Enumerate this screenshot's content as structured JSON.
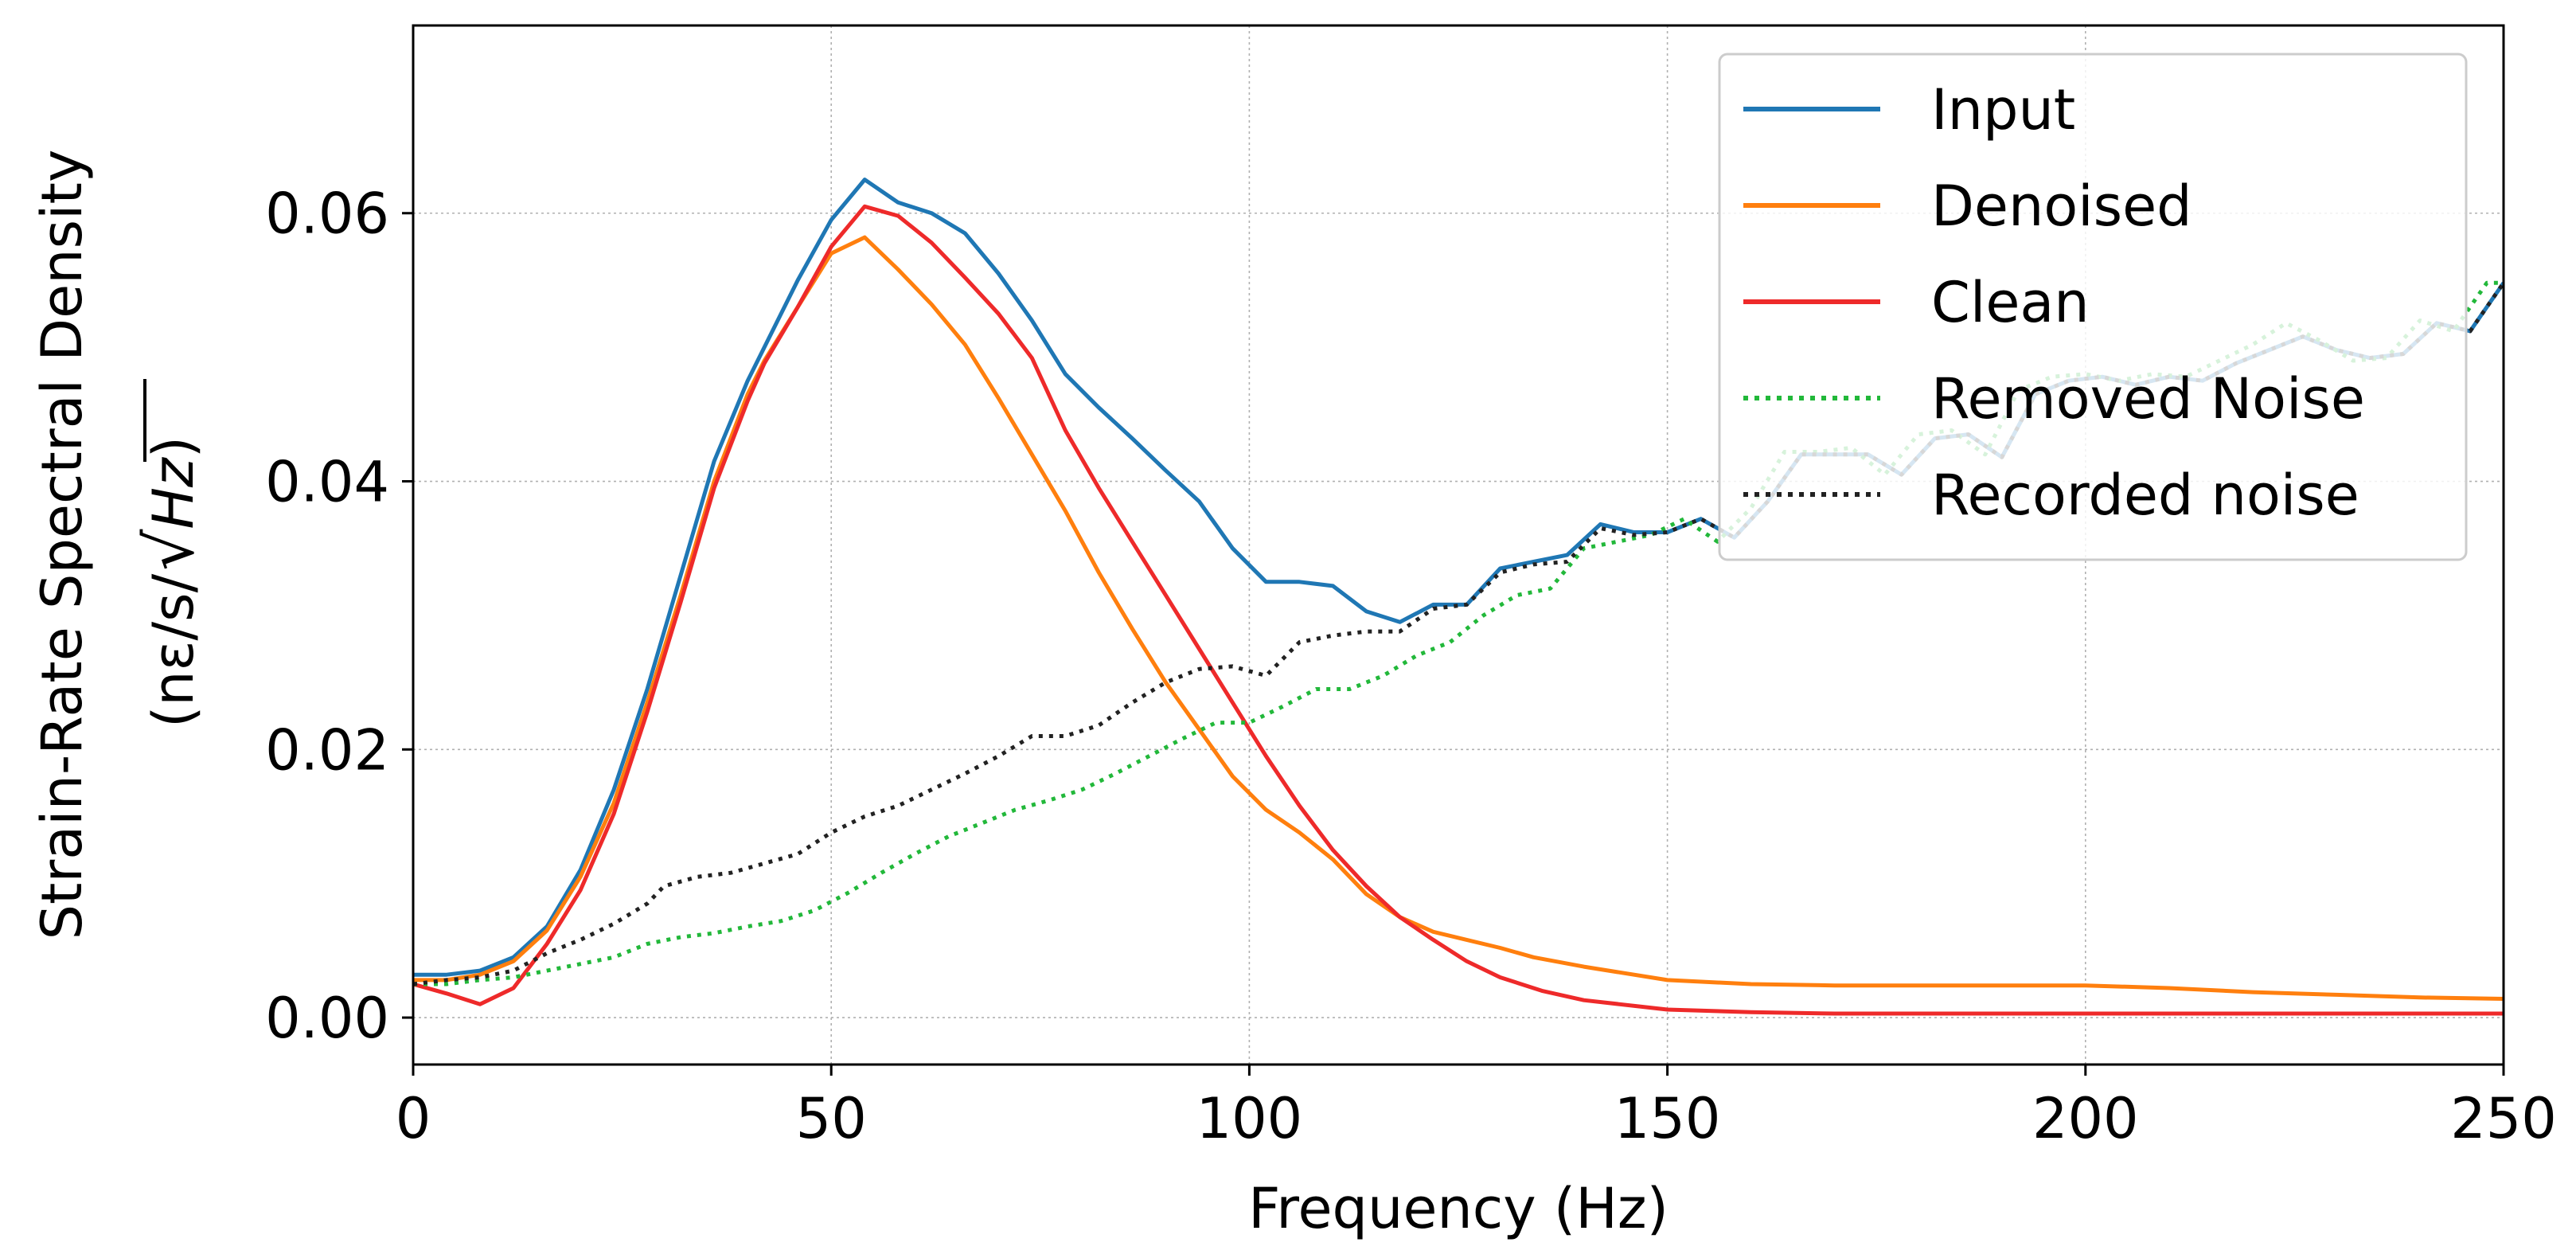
{
  "chart_data": {
    "type": "line",
    "title": "",
    "xlabel": "Frequency (Hz)",
    "ylabel_line1": "Strain-Rate Spectral Density",
    "ylabel_unit_prefix": "(nε/s/",
    "ylabel_unit_radicand": "Hz",
    "ylabel_unit_suffix": ")",
    "xlim": [
      0,
      250
    ],
    "ylim": [
      -0.0035,
      0.074
    ],
    "xticks": [
      0,
      50,
      100,
      150,
      200,
      250
    ],
    "xtick_labels": [
      "0",
      "50",
      "100",
      "150",
      "200",
      "250"
    ],
    "yticks": [
      0.0,
      0.02,
      0.04,
      0.06
    ],
    "ytick_labels": [
      "0.00",
      "0.02",
      "0.04",
      "0.06"
    ],
    "grid": true,
    "legend_position": "top-right",
    "series": [
      {
        "name": "Input",
        "color": "#1f77b4",
        "style": "solid",
        "x": [
          0,
          4,
          8,
          12,
          16,
          20,
          24,
          28,
          32,
          36,
          40,
          42,
          46,
          50,
          54,
          58,
          62,
          66,
          70,
          74,
          78,
          82,
          86,
          90,
          94,
          98,
          102,
          106,
          110,
          114,
          118,
          122,
          126,
          130,
          134,
          138,
          142,
          146,
          150,
          154,
          158,
          162,
          166,
          170,
          174,
          178,
          182,
          186,
          190,
          194,
          198,
          202,
          206,
          210,
          214,
          218,
          222,
          226,
          230,
          234,
          238,
          242,
          246,
          250
        ],
        "y": [
          0.0032,
          0.0032,
          0.0035,
          0.0045,
          0.0068,
          0.011,
          0.017,
          0.0245,
          0.033,
          0.0415,
          0.0475,
          0.05,
          0.055,
          0.0595,
          0.0625,
          0.0608,
          0.06,
          0.0585,
          0.0555,
          0.052,
          0.048,
          0.0455,
          0.0432,
          0.0408,
          0.0385,
          0.035,
          0.0325,
          0.0325,
          0.0322,
          0.0303,
          0.0295,
          0.0308,
          0.0308,
          0.0335,
          0.034,
          0.0345,
          0.0368,
          0.0362,
          0.0362,
          0.0372,
          0.0358,
          0.0385,
          0.042,
          0.042,
          0.042,
          0.0405,
          0.0432,
          0.0435,
          0.0418,
          0.0465,
          0.0475,
          0.0478,
          0.0472,
          0.0478,
          0.0475,
          0.0488,
          0.0498,
          0.0508,
          0.0498,
          0.0492,
          0.0495,
          0.0518,
          0.0512,
          0.0548
        ]
      },
      {
        "name": "Denoised",
        "color": "#ff7f0e",
        "style": "solid",
        "x": [
          0,
          4,
          8,
          12,
          16,
          20,
          24,
          28,
          32,
          36,
          40,
          42,
          46,
          50,
          54,
          58,
          62,
          66,
          70,
          74,
          78,
          82,
          86,
          90,
          94,
          98,
          102,
          106,
          110,
          114,
          118,
          122,
          126,
          130,
          134,
          140,
          150,
          160,
          170,
          180,
          190,
          200,
          210,
          220,
          230,
          240,
          250
        ],
        "y": [
          0.0028,
          0.0028,
          0.0032,
          0.0042,
          0.0065,
          0.0105,
          0.016,
          0.0235,
          0.0315,
          0.04,
          0.0465,
          0.049,
          0.053,
          0.057,
          0.0582,
          0.0558,
          0.0532,
          0.0502,
          0.0462,
          0.042,
          0.0378,
          0.0332,
          0.029,
          0.025,
          0.0215,
          0.018,
          0.0155,
          0.0138,
          0.0118,
          0.0092,
          0.0075,
          0.0064,
          0.0058,
          0.0052,
          0.0045,
          0.0038,
          0.0028,
          0.0025,
          0.0024,
          0.0024,
          0.0024,
          0.0024,
          0.0022,
          0.0019,
          0.0017,
          0.0015,
          0.0014
        ]
      },
      {
        "name": "Clean",
        "color": "#ee2a2a",
        "style": "solid",
        "x": [
          0,
          4,
          8,
          12,
          16,
          20,
          24,
          28,
          32,
          36,
          40,
          42,
          46,
          50,
          54,
          58,
          62,
          66,
          70,
          74,
          78,
          82,
          86,
          90,
          94,
          98,
          102,
          106,
          110,
          114,
          118,
          122,
          126,
          130,
          135,
          140,
          150,
          160,
          170,
          180,
          200,
          220,
          250
        ],
        "y": [
          0.0025,
          0.0018,
          0.001,
          0.0022,
          0.0055,
          0.0095,
          0.0152,
          0.0228,
          0.031,
          0.0395,
          0.046,
          0.0488,
          0.053,
          0.0575,
          0.0605,
          0.0598,
          0.0578,
          0.0552,
          0.0525,
          0.0492,
          0.0438,
          0.0395,
          0.0355,
          0.0315,
          0.0275,
          0.0235,
          0.0195,
          0.0158,
          0.0125,
          0.0098,
          0.0075,
          0.0058,
          0.0042,
          0.003,
          0.002,
          0.0013,
          0.0006,
          0.0004,
          0.0003,
          0.0003,
          0.0003,
          0.0003,
          0.0003
        ]
      },
      {
        "name": "Removed Noise",
        "color": "#22b83a",
        "style": "dotted",
        "x": [
          0,
          4,
          8,
          12,
          16,
          20,
          24,
          28,
          32,
          36,
          40,
          44,
          48,
          52,
          56,
          60,
          64,
          68,
          72,
          76,
          80,
          84,
          88,
          92,
          96,
          100,
          104,
          108,
          112,
          116,
          120,
          124,
          128,
          132,
          136,
          140,
          144,
          148,
          152,
          156,
          160,
          164,
          168,
          172,
          176,
          180,
          184,
          188,
          192,
          196,
          200,
          204,
          208,
          212,
          216,
          220,
          224,
          228,
          232,
          236,
          240,
          244,
          248,
          250
        ],
        "y": [
          0.0025,
          0.0025,
          0.0028,
          0.003,
          0.0035,
          0.004,
          0.0045,
          0.0055,
          0.006,
          0.0063,
          0.0068,
          0.0072,
          0.008,
          0.0093,
          0.0108,
          0.0122,
          0.0135,
          0.0145,
          0.0155,
          0.0162,
          0.017,
          0.0182,
          0.0195,
          0.0208,
          0.022,
          0.022,
          0.0232,
          0.0245,
          0.0245,
          0.0255,
          0.027,
          0.028,
          0.03,
          0.0315,
          0.032,
          0.035,
          0.0355,
          0.036,
          0.0372,
          0.0355,
          0.038,
          0.0422,
          0.0422,
          0.0425,
          0.0405,
          0.0435,
          0.0438,
          0.042,
          0.0468,
          0.0478,
          0.048,
          0.0475,
          0.048,
          0.0478,
          0.049,
          0.0502,
          0.0518,
          0.0505,
          0.049,
          0.0492,
          0.052,
          0.0512,
          0.0548,
          0.0548
        ]
      },
      {
        "name": "Recorded noise",
        "color": "#222222",
        "style": "dotted",
        "x": [
          0,
          4,
          8,
          12,
          16,
          20,
          24,
          28,
          30,
          34,
          38,
          42,
          46,
          50,
          54,
          58,
          62,
          66,
          70,
          74,
          78,
          82,
          86,
          90,
          94,
          98,
          102,
          106,
          110,
          114,
          118,
          122,
          126,
          130,
          134,
          138,
          142,
          146,
          150,
          154,
          158,
          162,
          166,
          170,
          174,
          178,
          182,
          186,
          190,
          194,
          198,
          202,
          206,
          210,
          214,
          218,
          222,
          226,
          230,
          234,
          238,
          242,
          246,
          250
        ],
        "y": [
          0.0025,
          0.0028,
          0.003,
          0.0035,
          0.0048,
          0.0058,
          0.007,
          0.0085,
          0.0098,
          0.0105,
          0.0108,
          0.0115,
          0.0122,
          0.0138,
          0.015,
          0.0158,
          0.017,
          0.0182,
          0.0195,
          0.021,
          0.021,
          0.0218,
          0.0235,
          0.025,
          0.026,
          0.0262,
          0.0255,
          0.028,
          0.0285,
          0.0288,
          0.0288,
          0.0305,
          0.0308,
          0.0332,
          0.0338,
          0.034,
          0.0365,
          0.036,
          0.0362,
          0.0372,
          0.0358,
          0.0385,
          0.042,
          0.042,
          0.042,
          0.0405,
          0.0432,
          0.0435,
          0.0418,
          0.0465,
          0.0475,
          0.0478,
          0.0472,
          0.0478,
          0.0475,
          0.0488,
          0.0498,
          0.0508,
          0.0498,
          0.0492,
          0.0495,
          0.0518,
          0.0512,
          0.0548
        ]
      }
    ]
  }
}
